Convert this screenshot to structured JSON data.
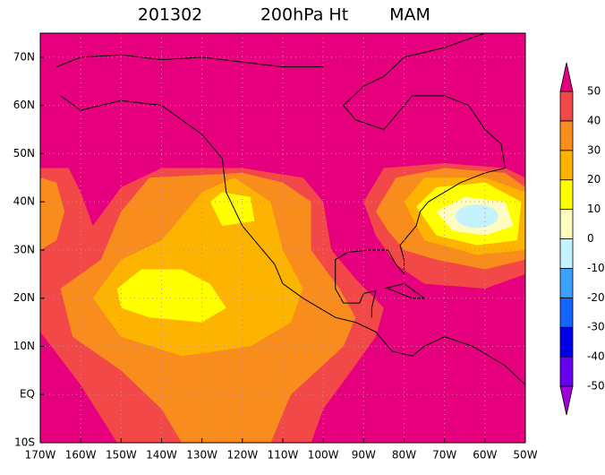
{
  "chart_data": {
    "type": "contour-map",
    "title": [
      "201302",
      "200hPa Ht",
      "MAM"
    ],
    "xlim": [
      -170,
      -50
    ],
    "ylim": [
      -10,
      75
    ],
    "xticks": [
      {
        "value": -170,
        "label": "170W"
      },
      {
        "value": -160,
        "label": "160W"
      },
      {
        "value": -150,
        "label": "150W"
      },
      {
        "value": -140,
        "label": "140W"
      },
      {
        "value": -130,
        "label": "130W"
      },
      {
        "value": -120,
        "label": "120W"
      },
      {
        "value": -110,
        "label": "110W"
      },
      {
        "value": -100,
        "label": "100W"
      },
      {
        "value": -90,
        "label": "90W"
      },
      {
        "value": -80,
        "label": "80W"
      },
      {
        "value": -70,
        "label": "70W"
      },
      {
        "value": -60,
        "label": "60W"
      },
      {
        "value": -50,
        "label": "50W"
      }
    ],
    "yticks": [
      {
        "value": -10,
        "label": "10S"
      },
      {
        "value": 0,
        "label": "EQ"
      },
      {
        "value": 10,
        "label": "10N"
      },
      {
        "value": 20,
        "label": "20N"
      },
      {
        "value": 30,
        "label": "30N"
      },
      {
        "value": 40,
        "label": "40N"
      },
      {
        "value": 50,
        "label": "50N"
      },
      {
        "value": 60,
        "label": "60N"
      },
      {
        "value": 70,
        "label": "70N"
      }
    ],
    "grid": true,
    "colorbar": {
      "levels": [
        -50,
        -40,
        -30,
        -20,
        -10,
        0,
        10,
        20,
        30,
        40,
        50
      ],
      "colors": [
        "#a000d8",
        "#6800f0",
        "#0000e8",
        "#1464ff",
        "#3ca0ff",
        "#c4f2ff",
        "#fffcc0",
        "#ffff00",
        "#fcb400",
        "#f88c1c",
        "#f24848",
        "#e6007e"
      ]
    }
  }
}
